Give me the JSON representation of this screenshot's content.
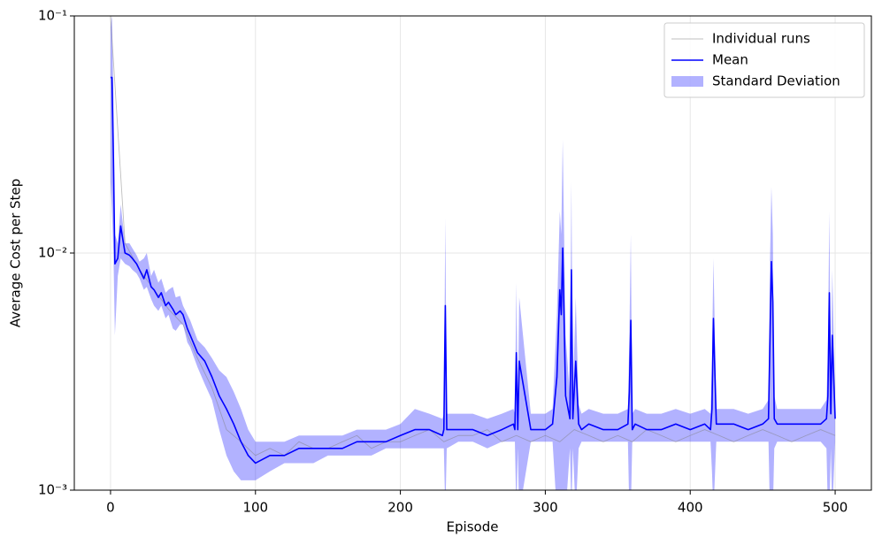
{
  "chart_data": {
    "type": "line",
    "xlabel": "Episode",
    "ylabel": "Average Cost per Step",
    "xlim": [
      -25,
      525
    ],
    "ylim": [
      0.001,
      0.1
    ],
    "log_y": true,
    "grid": true,
    "legend": "upper right",
    "xticks": [
      0,
      100,
      200,
      300,
      400,
      500
    ],
    "yticks": [
      {
        "value": 0.001,
        "label": "10⁻³"
      },
      {
        "value": 0.01,
        "label": "10⁻²"
      },
      {
        "value": 0.1,
        "label": "10⁻¹"
      }
    ],
    "x": [
      0,
      1,
      2,
      3,
      5,
      7,
      10,
      13,
      15,
      18,
      20,
      23,
      25,
      28,
      30,
      33,
      35,
      38,
      40,
      43,
      45,
      48,
      50,
      53,
      55,
      60,
      65,
      70,
      75,
      80,
      85,
      90,
      95,
      100,
      110,
      120,
      130,
      140,
      150,
      160,
      170,
      180,
      190,
      200,
      210,
      220,
      229,
      230,
      231,
      232,
      240,
      250,
      260,
      270,
      278,
      279,
      280,
      281,
      282,
      290,
      300,
      305,
      308,
      310,
      311,
      312,
      314,
      317,
      318,
      319,
      321,
      323,
      325,
      330,
      340,
      350,
      357,
      358,
      359,
      360,
      362,
      370,
      380,
      390,
      400,
      410,
      414,
      415,
      416,
      418,
      430,
      440,
      450,
      454,
      455,
      456,
      457,
      458,
      460,
      470,
      480,
      490,
      494,
      495,
      496,
      497,
      498,
      500
    ],
    "series": [
      {
        "name": "Individual runs",
        "kind": "line",
        "color": "#808080",
        "x": [
          0,
          10,
          20,
          30,
          40,
          50,
          60,
          70,
          80,
          90,
          100,
          110,
          120,
          130,
          140,
          150,
          160,
          170,
          180,
          190,
          200,
          210,
          220,
          230,
          240,
          250,
          260,
          270,
          280,
          290,
          300,
          310,
          320,
          330,
          340,
          350,
          360,
          370,
          380,
          390,
          400,
          410,
          420,
          430,
          440,
          450,
          460,
          470,
          480,
          490,
          500
        ],
        "values": [
          0.1,
          0.011,
          0.0085,
          0.007,
          0.0058,
          0.005,
          0.0036,
          0.0027,
          0.0018,
          0.0016,
          0.0014,
          0.0015,
          0.0014,
          0.0016,
          0.0015,
          0.0015,
          0.0016,
          0.0017,
          0.0015,
          0.0016,
          0.0016,
          0.0017,
          0.0018,
          0.0016,
          0.0017,
          0.0017,
          0.0018,
          0.0016,
          0.0017,
          0.0016,
          0.0017,
          0.0016,
          0.0018,
          0.0017,
          0.0016,
          0.0017,
          0.0016,
          0.0018,
          0.0017,
          0.0016,
          0.0017,
          0.0018,
          0.0017,
          0.0016,
          0.0017,
          0.0018,
          0.0017,
          0.0016,
          0.0017,
          0.0018,
          0.0017
        ]
      },
      {
        "name": "Mean",
        "kind": "line",
        "color": "#0000ff",
        "values": [
          0.055,
          0.055,
          0.025,
          0.009,
          0.0095,
          0.013,
          0.01,
          0.0098,
          0.0095,
          0.009,
          0.0085,
          0.0078,
          0.0085,
          0.0072,
          0.007,
          0.0065,
          0.0068,
          0.006,
          0.0062,
          0.0058,
          0.0055,
          0.0057,
          0.0055,
          0.0048,
          0.0045,
          0.0038,
          0.0035,
          0.003,
          0.0025,
          0.0022,
          0.0019,
          0.0016,
          0.0014,
          0.0013,
          0.0014,
          0.0014,
          0.0015,
          0.0015,
          0.0015,
          0.0015,
          0.0016,
          0.0016,
          0.0016,
          0.0017,
          0.0018,
          0.0018,
          0.0017,
          0.0018,
          0.006,
          0.0018,
          0.0018,
          0.0018,
          0.0017,
          0.0018,
          0.0019,
          0.0018,
          0.0038,
          0.0018,
          0.0035,
          0.0018,
          0.0018,
          0.0019,
          0.003,
          0.007,
          0.0055,
          0.0105,
          0.0025,
          0.002,
          0.0085,
          0.002,
          0.0035,
          0.0019,
          0.0018,
          0.0019,
          0.0018,
          0.0018,
          0.0019,
          0.0026,
          0.0052,
          0.0018,
          0.0019,
          0.0018,
          0.0018,
          0.0019,
          0.0018,
          0.0019,
          0.0018,
          0.0022,
          0.0053,
          0.0019,
          0.0019,
          0.0018,
          0.0019,
          0.002,
          0.0043,
          0.0092,
          0.0062,
          0.002,
          0.0019,
          0.0019,
          0.0019,
          0.0019,
          0.002,
          0.0025,
          0.0068,
          0.0021,
          0.0045,
          0.002
        ]
      },
      {
        "name": "Standard Deviation",
        "kind": "band",
        "color": "#0000ff",
        "upper": [
          0.09,
          0.1,
          0.045,
          0.012,
          0.011,
          0.016,
          0.011,
          0.011,
          0.0105,
          0.0098,
          0.0092,
          0.0095,
          0.01,
          0.008,
          0.0085,
          0.0075,
          0.0078,
          0.0068,
          0.007,
          0.0072,
          0.0065,
          0.0066,
          0.006,
          0.0055,
          0.0052,
          0.0043,
          0.004,
          0.0036,
          0.0032,
          0.003,
          0.0026,
          0.0022,
          0.0018,
          0.0016,
          0.0016,
          0.0016,
          0.0017,
          0.0017,
          0.0017,
          0.0017,
          0.0018,
          0.0018,
          0.0018,
          0.0019,
          0.0022,
          0.0021,
          0.002,
          0.0021,
          0.014,
          0.0021,
          0.0021,
          0.0021,
          0.002,
          0.0021,
          0.0022,
          0.0021,
          0.0075,
          0.0021,
          0.0065,
          0.0021,
          0.0021,
          0.0022,
          0.0055,
          0.015,
          0.012,
          0.03,
          0.0045,
          0.0025,
          0.02,
          0.0025,
          0.0065,
          0.0023,
          0.0021,
          0.0022,
          0.0021,
          0.0021,
          0.0022,
          0.0045,
          0.012,
          0.0021,
          0.0022,
          0.0021,
          0.0021,
          0.0022,
          0.0021,
          0.0022,
          0.0021,
          0.0035,
          0.0095,
          0.0022,
          0.0022,
          0.0021,
          0.0022,
          0.0024,
          0.009,
          0.019,
          0.012,
          0.0025,
          0.0022,
          0.0022,
          0.0022,
          0.0022,
          0.0024,
          0.004,
          0.015,
          0.0025,
          0.0085,
          0.0024
        ],
        "lower": [
          0.02,
          0.015,
          0.01,
          0.0045,
          0.008,
          0.0095,
          0.009,
          0.0088,
          0.0085,
          0.0082,
          0.0078,
          0.007,
          0.0072,
          0.0064,
          0.006,
          0.0057,
          0.006,
          0.0053,
          0.0055,
          0.0048,
          0.0047,
          0.005,
          0.005,
          0.0042,
          0.004,
          0.0033,
          0.0028,
          0.0024,
          0.0018,
          0.0014,
          0.0012,
          0.0011,
          0.0011,
          0.0011,
          0.0012,
          0.0013,
          0.0013,
          0.0013,
          0.0014,
          0.0014,
          0.0014,
          0.0014,
          0.0015,
          0.0015,
          0.0015,
          0.0015,
          0.0015,
          0.0015,
          0.0008,
          0.0015,
          0.0016,
          0.0016,
          0.0015,
          0.0016,
          0.0016,
          0.0016,
          0.0008,
          0.0015,
          0.0008,
          0.0016,
          0.0016,
          0.0016,
          0.0008,
          0.0008,
          0.0008,
          0.0008,
          0.0008,
          0.0015,
          0.0008,
          0.0015,
          0.0008,
          0.0015,
          0.0016,
          0.0016,
          0.0016,
          0.0016,
          0.0016,
          0.0008,
          0.0008,
          0.0016,
          0.0016,
          0.0016,
          0.0016,
          0.0016,
          0.0016,
          0.0016,
          0.0016,
          0.0012,
          0.0008,
          0.0016,
          0.0016,
          0.0016,
          0.0016,
          0.0016,
          0.0008,
          0.0008,
          0.0008,
          0.0015,
          0.0016,
          0.0016,
          0.0016,
          0.0016,
          0.0015,
          0.0008,
          0.0008,
          0.0015,
          0.0008,
          0.0016
        ]
      }
    ]
  }
}
